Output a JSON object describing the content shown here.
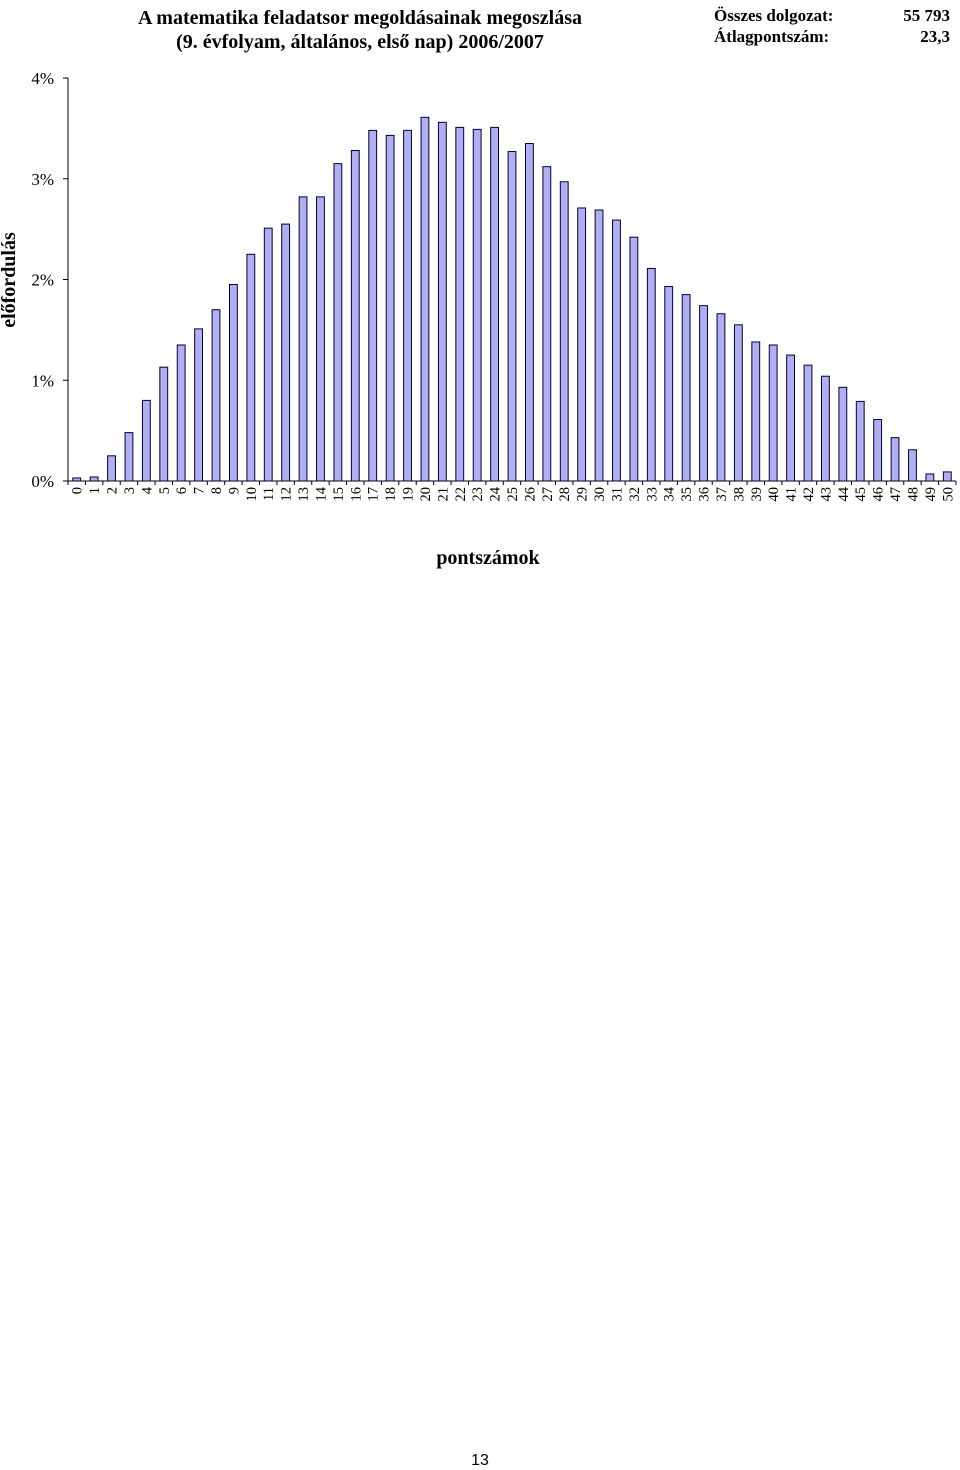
{
  "page": {
    "title_line1": "A matematika feladatsor megoldásainak megoszlása",
    "title_line2": "(9. évfolyam, általános, első nap) 2006/2007",
    "stats": {
      "total_label": "Összes dolgozat:",
      "total_value": "55 793",
      "avg_label": "Átlagpontszám:",
      "avg_value": "23,3"
    },
    "page_number": "13"
  },
  "chart_data": {
    "type": "bar",
    "title": "A matematika feladatsor megoldásainak megoszlása (9. évfolyam, általános, első nap) 2006/2007",
    "xlabel": "pontszámok",
    "ylabel": "előfordulás",
    "ylim": [
      0,
      4
    ],
    "y_ticks": [
      "0%",
      "1%",
      "2%",
      "3%",
      "4%"
    ],
    "bar_color": "#b0b0f0",
    "grid": false,
    "categories": [
      "0",
      "1",
      "2",
      "3",
      "4",
      "5",
      "6",
      "7",
      "8",
      "9",
      "10",
      "11",
      "12",
      "13",
      "14",
      "15",
      "16",
      "17",
      "18",
      "19",
      "20",
      "21",
      "22",
      "23",
      "24",
      "25",
      "26",
      "27",
      "28",
      "29",
      "30",
      "31",
      "32",
      "33",
      "34",
      "35",
      "36",
      "37",
      "38",
      "39",
      "40",
      "41",
      "42",
      "43",
      "44",
      "45",
      "46",
      "47",
      "48",
      "49",
      "50"
    ],
    "values": [
      0.03,
      0.04,
      0.25,
      0.48,
      0.8,
      1.13,
      1.35,
      1.51,
      1.7,
      1.95,
      2.25,
      2.51,
      2.55,
      2.82,
      2.82,
      3.15,
      3.28,
      3.48,
      3.43,
      3.48,
      3.61,
      3.56,
      3.51,
      3.49,
      3.51,
      3.27,
      3.35,
      3.12,
      2.97,
      2.71,
      2.69,
      2.59,
      2.42,
      2.11,
      1.93,
      1.85,
      1.74,
      1.66,
      1.55,
      1.38,
      1.35,
      1.25,
      1.15,
      1.04,
      0.93,
      0.79,
      0.61,
      0.43,
      0.31,
      0.07,
      0.09
    ]
  }
}
